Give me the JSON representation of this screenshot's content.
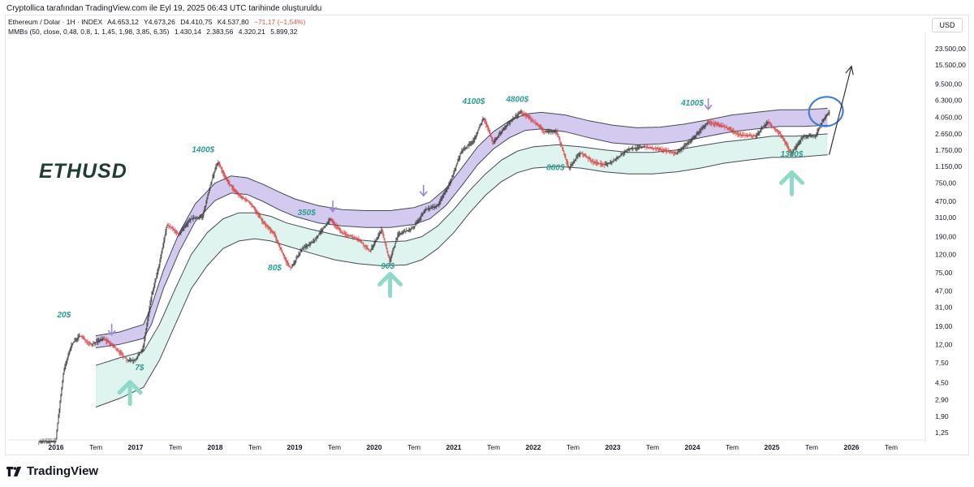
{
  "header": {
    "created_by": "Cryptollica tarafından TradingView.com ile Eyl 19, 2025 06:43 UTC tarihinde oluşturuldu"
  },
  "symbol": {
    "name": "Ethereum / Dolar · 1H · INDEX",
    "open": "A4.653,12",
    "high": "Y4.673,26",
    "low": "D4.410,75",
    "close": "K4.537,80",
    "change": "−71,17 (−1,54%)"
  },
  "indicator": {
    "label": "MMBs (50, close, 0,48, 0,8, 1, 1,45, 1,98, 3,85, 6,35)",
    "values": [
      "1.430,14",
      "2.383,56",
      "4.320,21",
      "5.899,32"
    ]
  },
  "currency_button": "USD",
  "branding": "TradingView",
  "colors": {
    "upper_band": "#ccc0ec",
    "lower_band": "#d9f2ec",
    "annotation": "#2a9d8f",
    "arrow_up": "#8fd9c8",
    "arrow_down": "#9b87d6",
    "circle": "#3f7fd9",
    "candle_up": "#333333",
    "candle_down": "#d23c3c"
  },
  "chart_data": {
    "type": "candlestick",
    "title": "ETHUSD",
    "scale": "log",
    "y_unit": "USD",
    "ylim": [
      0.9,
      40000
    ],
    "xlim": [
      2015.6,
      2026.5
    ],
    "x_ticks": [
      {
        "label": "2016",
        "year": 2016.0
      },
      {
        "label": "Tem",
        "year": 2016.5
      },
      {
        "label": "2017",
        "year": 2017.0
      },
      {
        "label": "Tem",
        "year": 2017.5
      },
      {
        "label": "2018",
        "year": 2018.0
      },
      {
        "label": "Tem",
        "year": 2018.5
      },
      {
        "label": "2019",
        "year": 2019.0
      },
      {
        "label": "Tem",
        "year": 2019.5
      },
      {
        "label": "2020",
        "year": 2020.0
      },
      {
        "label": "Tem",
        "year": 2020.5
      },
      {
        "label": "2021",
        "year": 2021.0
      },
      {
        "label": "Tem",
        "year": 2021.5
      },
      {
        "label": "2022",
        "year": 2022.0
      },
      {
        "label": "Tem",
        "year": 2022.5
      },
      {
        "label": "2023",
        "year": 2023.0
      },
      {
        "label": "Tem",
        "year": 2023.5
      },
      {
        "label": "2024",
        "year": 2024.0
      },
      {
        "label": "Tem",
        "year": 2024.5
      },
      {
        "label": "2025",
        "year": 2025.0
      },
      {
        "label": "Tem",
        "year": 2025.5
      },
      {
        "label": "2026",
        "year": 2026.0
      },
      {
        "label": "Tem",
        "year": 2026.5
      }
    ],
    "y_ticks": [
      {
        "label": "23.500,00",
        "value": 23500
      },
      {
        "label": "15.500,00",
        "value": 15500
      },
      {
        "label": "9.500,00",
        "value": 9500
      },
      {
        "label": "6.300,00",
        "value": 6300
      },
      {
        "label": "4.050,00",
        "value": 4050
      },
      {
        "label": "2.650,00",
        "value": 2650
      },
      {
        "label": "1.750,00",
        "value": 1750
      },
      {
        "label": "1.150,00",
        "value": 1150
      },
      {
        "label": "750,00",
        "value": 750
      },
      {
        "label": "470,00",
        "value": 470
      },
      {
        "label": "310,00",
        "value": 310
      },
      {
        "label": "190,00",
        "value": 190
      },
      {
        "label": "120,00",
        "value": 120
      },
      {
        "label": "75,00",
        "value": 75
      },
      {
        "label": "47,00",
        "value": 47
      },
      {
        "label": "31,00",
        "value": 31
      },
      {
        "label": "19,00",
        "value": 19
      },
      {
        "label": "12,00",
        "value": 12
      },
      {
        "label": "7,50",
        "value": 7.5
      },
      {
        "label": "4,50",
        "value": 4.5
      },
      {
        "label": "2,90",
        "value": 2.9
      },
      {
        "label": "1,90",
        "value": 1.9
      },
      {
        "label": "1,25",
        "value": 1.25
      }
    ],
    "price_path": [
      {
        "t": 2015.75,
        "v": 1.0
      },
      {
        "t": 2015.85,
        "v": 1.0
      },
      {
        "t": 2016.0,
        "v": 1.0
      },
      {
        "t": 2016.1,
        "v": 6
      },
      {
        "t": 2016.2,
        "v": 12
      },
      {
        "t": 2016.3,
        "v": 15
      },
      {
        "t": 2016.45,
        "v": 12
      },
      {
        "t": 2016.6,
        "v": 14
      },
      {
        "t": 2016.75,
        "v": 11
      },
      {
        "t": 2016.9,
        "v": 8
      },
      {
        "t": 2017.0,
        "v": 8
      },
      {
        "t": 2017.1,
        "v": 11
      },
      {
        "t": 2017.2,
        "v": 40
      },
      {
        "t": 2017.3,
        "v": 90
      },
      {
        "t": 2017.4,
        "v": 260
      },
      {
        "t": 2017.55,
        "v": 200
      },
      {
        "t": 2017.7,
        "v": 300
      },
      {
        "t": 2017.85,
        "v": 320
      },
      {
        "t": 2017.95,
        "v": 750
      },
      {
        "t": 2018.04,
        "v": 1300
      },
      {
        "t": 2018.15,
        "v": 800
      },
      {
        "t": 2018.3,
        "v": 550
      },
      {
        "t": 2018.45,
        "v": 450
      },
      {
        "t": 2018.6,
        "v": 280
      },
      {
        "t": 2018.75,
        "v": 200
      },
      {
        "t": 2018.9,
        "v": 100
      },
      {
        "t": 2018.96,
        "v": 85
      },
      {
        "t": 2019.1,
        "v": 140
      },
      {
        "t": 2019.25,
        "v": 170
      },
      {
        "t": 2019.45,
        "v": 300
      },
      {
        "t": 2019.6,
        "v": 210
      },
      {
        "t": 2019.8,
        "v": 180
      },
      {
        "t": 2019.95,
        "v": 130
      },
      {
        "t": 2020.1,
        "v": 230
      },
      {
        "t": 2020.2,
        "v": 100
      },
      {
        "t": 2020.3,
        "v": 200
      },
      {
        "t": 2020.5,
        "v": 240
      },
      {
        "t": 2020.65,
        "v": 380
      },
      {
        "t": 2020.8,
        "v": 420
      },
      {
        "t": 2020.95,
        "v": 730
      },
      {
        "t": 2021.1,
        "v": 1700
      },
      {
        "t": 2021.25,
        "v": 2200
      },
      {
        "t": 2021.38,
        "v": 4000
      },
      {
        "t": 2021.5,
        "v": 2100
      },
      {
        "t": 2021.65,
        "v": 3200
      },
      {
        "t": 2021.85,
        "v": 4700
      },
      {
        "t": 2022.0,
        "v": 3700
      },
      {
        "t": 2022.15,
        "v": 2800
      },
      {
        "t": 2022.3,
        "v": 2800
      },
      {
        "t": 2022.45,
        "v": 1100
      },
      {
        "t": 2022.6,
        "v": 1650
      },
      {
        "t": 2022.75,
        "v": 1300
      },
      {
        "t": 2022.9,
        "v": 1200
      },
      {
        "t": 2023.0,
        "v": 1300
      },
      {
        "t": 2023.2,
        "v": 1800
      },
      {
        "t": 2023.4,
        "v": 1900
      },
      {
        "t": 2023.6,
        "v": 1800
      },
      {
        "t": 2023.8,
        "v": 1600
      },
      {
        "t": 2024.0,
        "v": 2300
      },
      {
        "t": 2024.2,
        "v": 3600
      },
      {
        "t": 2024.4,
        "v": 3200
      },
      {
        "t": 2024.6,
        "v": 2600
      },
      {
        "t": 2024.8,
        "v": 2500
      },
      {
        "t": 2024.95,
        "v": 3600
      },
      {
        "t": 2025.1,
        "v": 2700
      },
      {
        "t": 2025.25,
        "v": 1600
      },
      {
        "t": 2025.4,
        "v": 2500
      },
      {
        "t": 2025.55,
        "v": 2500
      },
      {
        "t": 2025.65,
        "v": 3800
      },
      {
        "t": 2025.72,
        "v": 4600
      }
    ],
    "upper_band": [
      {
        "t": 2016.5,
        "lo": 11,
        "hi": 15
      },
      {
        "t": 2016.8,
        "lo": 12,
        "hi": 16.5
      },
      {
        "t": 2017.1,
        "lo": 14,
        "hi": 20
      },
      {
        "t": 2017.2,
        "lo": 20,
        "hi": 32
      },
      {
        "t": 2017.35,
        "lo": 50,
        "hi": 80
      },
      {
        "t": 2017.55,
        "lo": 130,
        "hi": 210
      },
      {
        "t": 2017.75,
        "lo": 280,
        "hi": 440
      },
      {
        "t": 2018.0,
        "lo": 480,
        "hi": 750
      },
      {
        "t": 2018.2,
        "lo": 580,
        "hi": 900
      },
      {
        "t": 2018.4,
        "lo": 560,
        "hi": 860
      },
      {
        "t": 2018.6,
        "lo": 470,
        "hi": 730
      },
      {
        "t": 2018.8,
        "lo": 380,
        "hi": 600
      },
      {
        "t": 2019.0,
        "lo": 320,
        "hi": 500
      },
      {
        "t": 2019.3,
        "lo": 270,
        "hi": 420
      },
      {
        "t": 2019.6,
        "lo": 250,
        "hi": 380
      },
      {
        "t": 2019.9,
        "lo": 240,
        "hi": 370
      },
      {
        "t": 2020.2,
        "lo": 240,
        "hi": 370
      },
      {
        "t": 2020.5,
        "lo": 260,
        "hi": 400
      },
      {
        "t": 2020.7,
        "lo": 300,
        "hi": 460
      },
      {
        "t": 2020.9,
        "lo": 420,
        "hi": 650
      },
      {
        "t": 2021.1,
        "lo": 700,
        "hi": 1100
      },
      {
        "t": 2021.3,
        "lo": 1200,
        "hi": 1900
      },
      {
        "t": 2021.5,
        "lo": 1800,
        "hi": 2800
      },
      {
        "t": 2021.7,
        "lo": 2400,
        "hi": 3700
      },
      {
        "t": 2021.9,
        "lo": 2900,
        "hi": 4400
      },
      {
        "t": 2022.1,
        "lo": 3000,
        "hi": 4600
      },
      {
        "t": 2022.4,
        "lo": 2800,
        "hi": 4300
      },
      {
        "t": 2022.7,
        "lo": 2400,
        "hi": 3700
      },
      {
        "t": 2023.0,
        "lo": 2100,
        "hi": 3300
      },
      {
        "t": 2023.3,
        "lo": 2000,
        "hi": 3100
      },
      {
        "t": 2023.6,
        "lo": 2050,
        "hi": 3150
      },
      {
        "t": 2023.9,
        "lo": 2200,
        "hi": 3400
      },
      {
        "t": 2024.2,
        "lo": 2500,
        "hi": 3800
      },
      {
        "t": 2024.5,
        "lo": 2800,
        "hi": 4300
      },
      {
        "t": 2024.8,
        "lo": 3000,
        "hi": 4600
      },
      {
        "t": 2025.1,
        "lo": 3200,
        "hi": 4900
      },
      {
        "t": 2025.4,
        "lo": 3200,
        "hi": 4900
      },
      {
        "t": 2025.7,
        "lo": 3300,
        "hi": 5100
      }
    ],
    "lower_band": [
      {
        "t": 2016.5,
        "lo": 2.4,
        "hi": 7
      },
      {
        "t": 2016.8,
        "lo": 3,
        "hi": 8.5
      },
      {
        "t": 2017.1,
        "lo": 4,
        "hi": 10
      },
      {
        "t": 2017.3,
        "lo": 8,
        "hi": 20
      },
      {
        "t": 2017.5,
        "lo": 20,
        "hi": 50
      },
      {
        "t": 2017.7,
        "lo": 50,
        "hi": 120
      },
      {
        "t": 2017.9,
        "lo": 90,
        "hi": 210
      },
      {
        "t": 2018.1,
        "lo": 140,
        "hi": 300
      },
      {
        "t": 2018.3,
        "lo": 170,
        "hi": 350
      },
      {
        "t": 2018.5,
        "lo": 180,
        "hi": 350
      },
      {
        "t": 2018.7,
        "lo": 170,
        "hi": 320
      },
      {
        "t": 2018.9,
        "lo": 150,
        "hi": 270
      },
      {
        "t": 2019.2,
        "lo": 125,
        "hi": 230
      },
      {
        "t": 2019.5,
        "lo": 105,
        "hi": 200
      },
      {
        "t": 2019.8,
        "lo": 95,
        "hi": 175
      },
      {
        "t": 2020.1,
        "lo": 90,
        "hi": 165
      },
      {
        "t": 2020.4,
        "lo": 92,
        "hi": 170
      },
      {
        "t": 2020.6,
        "lo": 105,
        "hi": 190
      },
      {
        "t": 2020.8,
        "lo": 140,
        "hi": 250
      },
      {
        "t": 2021.0,
        "lo": 210,
        "hi": 380
      },
      {
        "t": 2021.2,
        "lo": 350,
        "hi": 620
      },
      {
        "t": 2021.4,
        "lo": 550,
        "hi": 950
      },
      {
        "t": 2021.6,
        "lo": 780,
        "hi": 1350
      },
      {
        "t": 2021.8,
        "lo": 980,
        "hi": 1700
      },
      {
        "t": 2022.0,
        "lo": 1100,
        "hi": 1900
      },
      {
        "t": 2022.3,
        "lo": 1150,
        "hi": 2000
      },
      {
        "t": 2022.6,
        "lo": 1100,
        "hi": 1900
      },
      {
        "t": 2022.9,
        "lo": 1000,
        "hi": 1750
      },
      {
        "t": 2023.2,
        "lo": 950,
        "hi": 1650
      },
      {
        "t": 2023.5,
        "lo": 950,
        "hi": 1650
      },
      {
        "t": 2023.8,
        "lo": 1000,
        "hi": 1750
      },
      {
        "t": 2024.1,
        "lo": 1100,
        "hi": 1950
      },
      {
        "t": 2024.4,
        "lo": 1250,
        "hi": 2150
      },
      {
        "t": 2024.7,
        "lo": 1350,
        "hi": 2300
      },
      {
        "t": 2025.0,
        "lo": 1450,
        "hi": 2500
      },
      {
        "t": 2025.3,
        "lo": 1450,
        "hi": 2500
      },
      {
        "t": 2025.7,
        "lo": 1550,
        "hi": 2650
      }
    ],
    "annotations": [
      {
        "text": "20$",
        "t": 2016.1,
        "v": 24,
        "place": "above"
      },
      {
        "text": "7$",
        "t": 2017.05,
        "v": 6.2,
        "place": "below"
      },
      {
        "text": "1400$",
        "t": 2017.85,
        "v": 1650,
        "place": "above"
      },
      {
        "text": "80$",
        "t": 2018.75,
        "v": 80,
        "place": "below"
      },
      {
        "text": "350$",
        "t": 2019.15,
        "v": 330,
        "place": "above"
      },
      {
        "text": "90$",
        "t": 2020.17,
        "v": 84,
        "place": "below"
      },
      {
        "text": "4100$",
        "t": 2021.25,
        "v": 5700,
        "place": "above"
      },
      {
        "text": "4800$",
        "t": 2021.8,
        "v": 6000,
        "place": "above"
      },
      {
        "text": "880$",
        "t": 2022.28,
        "v": 1050,
        "place": "below"
      },
      {
        "text": "4100$",
        "t": 2024.0,
        "v": 5500,
        "place": "above"
      },
      {
        "text": "1380$",
        "t": 2025.25,
        "v": 1480,
        "place": "below"
      }
    ],
    "down_arrows": [
      {
        "t": 2016.7,
        "v": 17
      },
      {
        "t": 2019.48,
        "v": 400
      },
      {
        "t": 2020.62,
        "v": 600
      },
      {
        "t": 2024.2,
        "v": 5500
      }
    ],
    "up_arrows": [
      {
        "t": 2016.93,
        "v": 2.5
      },
      {
        "t": 2020.2,
        "v": 40
      },
      {
        "t": 2025.25,
        "v": 540
      }
    ],
    "highlight_circle": {
      "t": 2025.68,
      "v": 4700
    },
    "forecast_arrow": {
      "t_start": 2025.72,
      "v_start": 1550,
      "t_end": 2026.0,
      "v_end": 15000
    }
  }
}
